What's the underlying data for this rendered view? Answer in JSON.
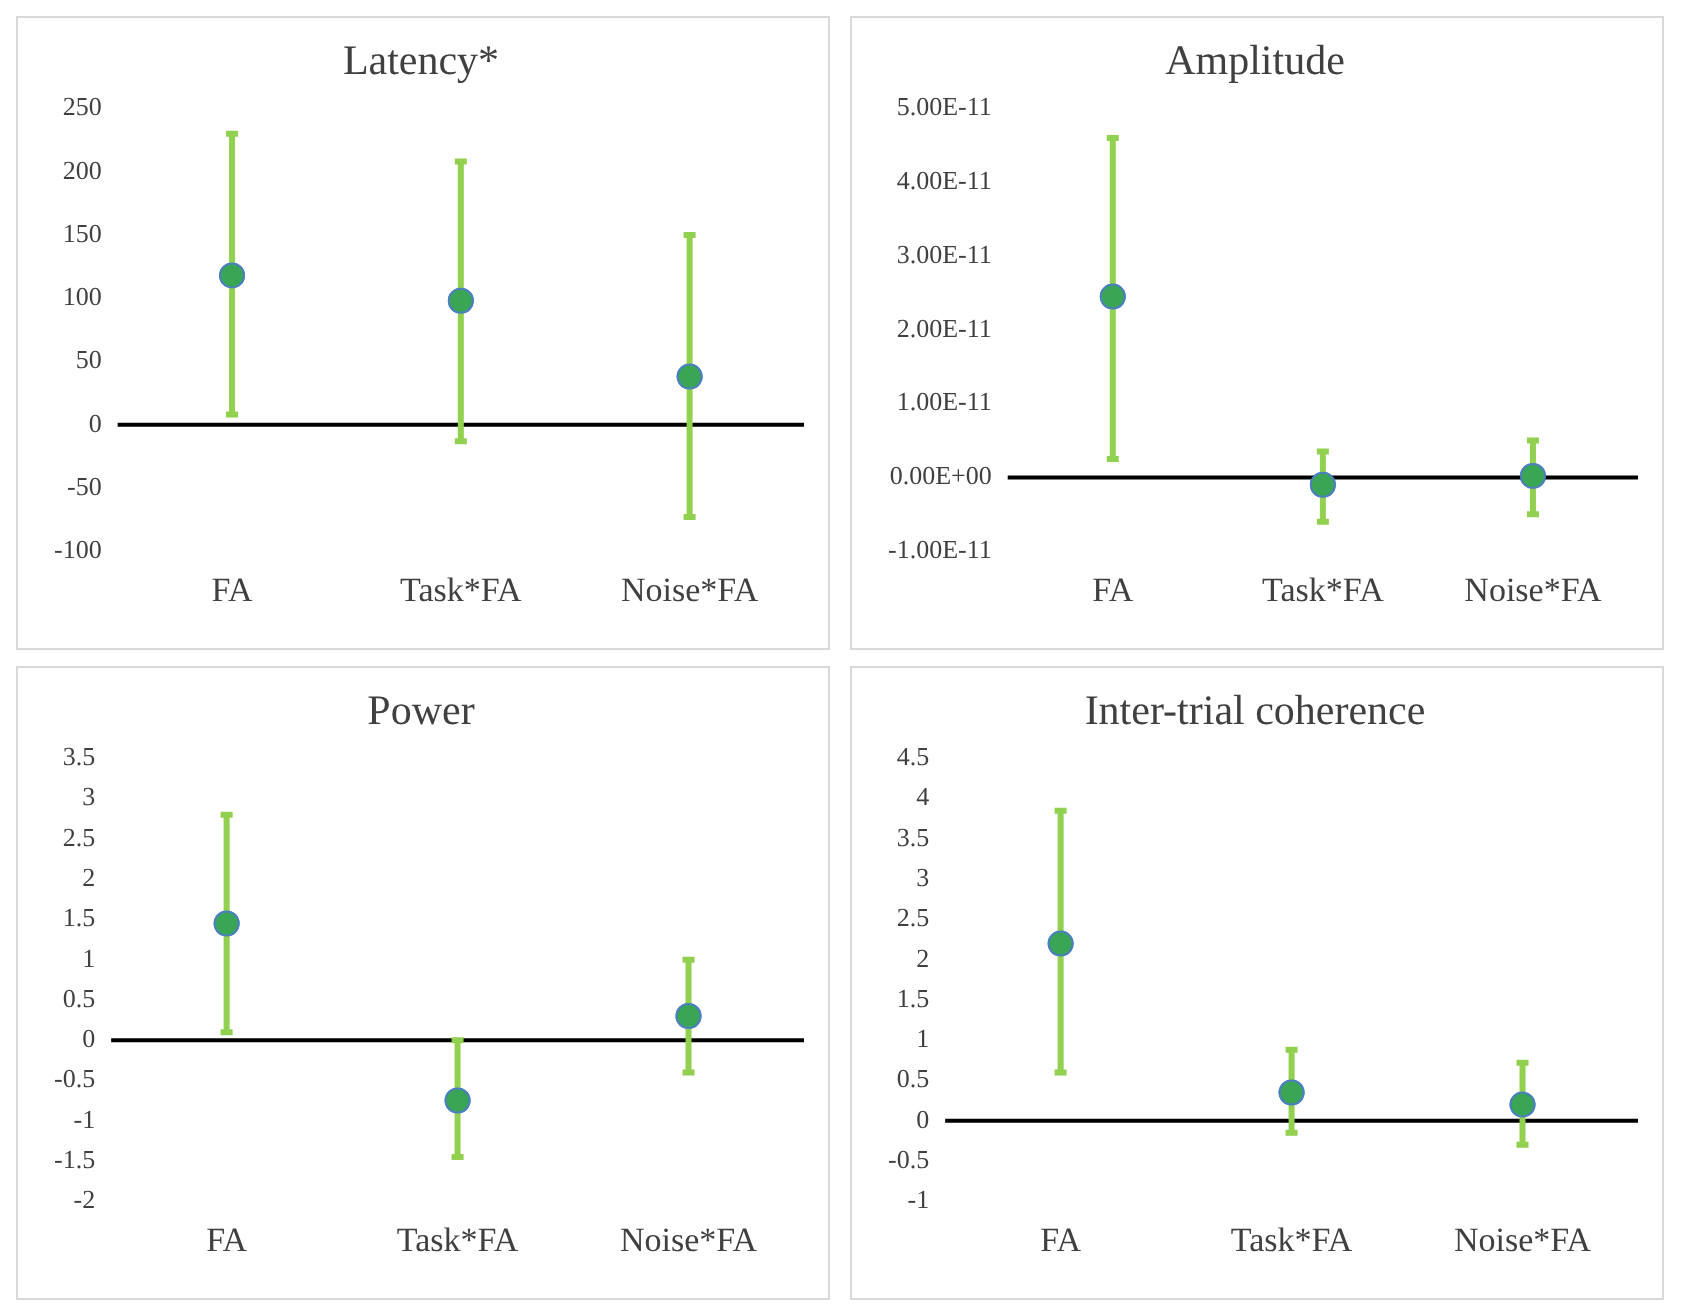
{
  "chart_data": [
    {
      "type": "scatter",
      "title": "Latency*",
      "categories": [
        "FA",
        "Task*FA",
        "Noise*FA"
      ],
      "series": [
        {
          "color": "#3aa655",
          "values": [
            118,
            98,
            38
          ],
          "errors": [
            [
              8,
              230
            ],
            [
              -13,
              208
            ],
            [
              -73,
              150
            ]
          ]
        }
      ],
      "ylim": [
        -100,
        250
      ],
      "yticks": [
        -100,
        -50,
        0,
        50,
        100,
        150,
        200,
        250
      ],
      "grid": false,
      "marker": "circle",
      "ref_lines": [
        {
          "axis": "y",
          "value": 0,
          "color": "#000000"
        }
      ]
    },
    {
      "type": "scatter",
      "title": "Amplitude",
      "categories": [
        "FA",
        "Task*FA",
        "Noise*FA"
      ],
      "series": [
        {
          "color": "#3aa655",
          "values": [
            2.45e-11,
            -1e-12,
            2e-13
          ],
          "errors": [
            [
              2.5e-12,
              4.6e-11
            ],
            [
              -6e-12,
              3.5e-12
            ],
            [
              -5e-12,
              5e-12
            ]
          ]
        }
      ],
      "ylim": [
        -1e-11,
        5e-11
      ],
      "yticks": [
        {
          "value": -1e-11,
          "label": "-1.00E-11"
        },
        {
          "value": 0,
          "label": "0.00E+00"
        },
        {
          "value": 1e-11,
          "label": "1.00E-11"
        },
        {
          "value": 2e-11,
          "label": "2.00E-11"
        },
        {
          "value": 3e-11,
          "label": "3.00E-11"
        },
        {
          "value": 4e-11,
          "label": "4.00E-11"
        },
        {
          "value": 5e-11,
          "label": "5.00E-11"
        }
      ],
      "grid": false,
      "marker": "circle",
      "ref_lines": [
        {
          "axis": "y",
          "value": 0,
          "color": "#000000"
        }
      ]
    },
    {
      "type": "scatter",
      "title": "Power",
      "categories": [
        "FA",
        "Task*FA",
        "Noise*FA"
      ],
      "series": [
        {
          "color": "#3aa655",
          "values": [
            1.45,
            -0.75,
            0.3
          ],
          "errors": [
            [
              0.1,
              2.8
            ],
            [
              -1.45,
              0
            ],
            [
              -0.4,
              1.0
            ]
          ]
        }
      ],
      "ylim": [
        -2,
        3.5
      ],
      "yticks": [
        -2,
        -1.5,
        -1,
        -0.5,
        0,
        0.5,
        1,
        1.5,
        2,
        2.5,
        3,
        3.5
      ],
      "grid": false,
      "marker": "circle",
      "ref_lines": [
        {
          "axis": "y",
          "value": 0,
          "color": "#000000"
        }
      ]
    },
    {
      "type": "scatter",
      "title": "Inter-trial coherence",
      "categories": [
        "FA",
        "Task*FA",
        "Noise*FA"
      ],
      "series": [
        {
          "color": "#3aa655",
          "values": [
            2.2,
            0.35,
            0.2
          ],
          "errors": [
            [
              0.6,
              3.85
            ],
            [
              -0.15,
              0.88
            ],
            [
              -0.3,
              0.72
            ]
          ]
        }
      ],
      "ylim": [
        -1,
        4.5
      ],
      "yticks": [
        -1,
        -0.5,
        0,
        0.5,
        1,
        1.5,
        2,
        2.5,
        3,
        3.5,
        4,
        4.5
      ],
      "grid": false,
      "marker": "circle",
      "ref_lines": [
        {
          "axis": "y",
          "value": 0,
          "color": "#000000"
        }
      ]
    }
  ]
}
